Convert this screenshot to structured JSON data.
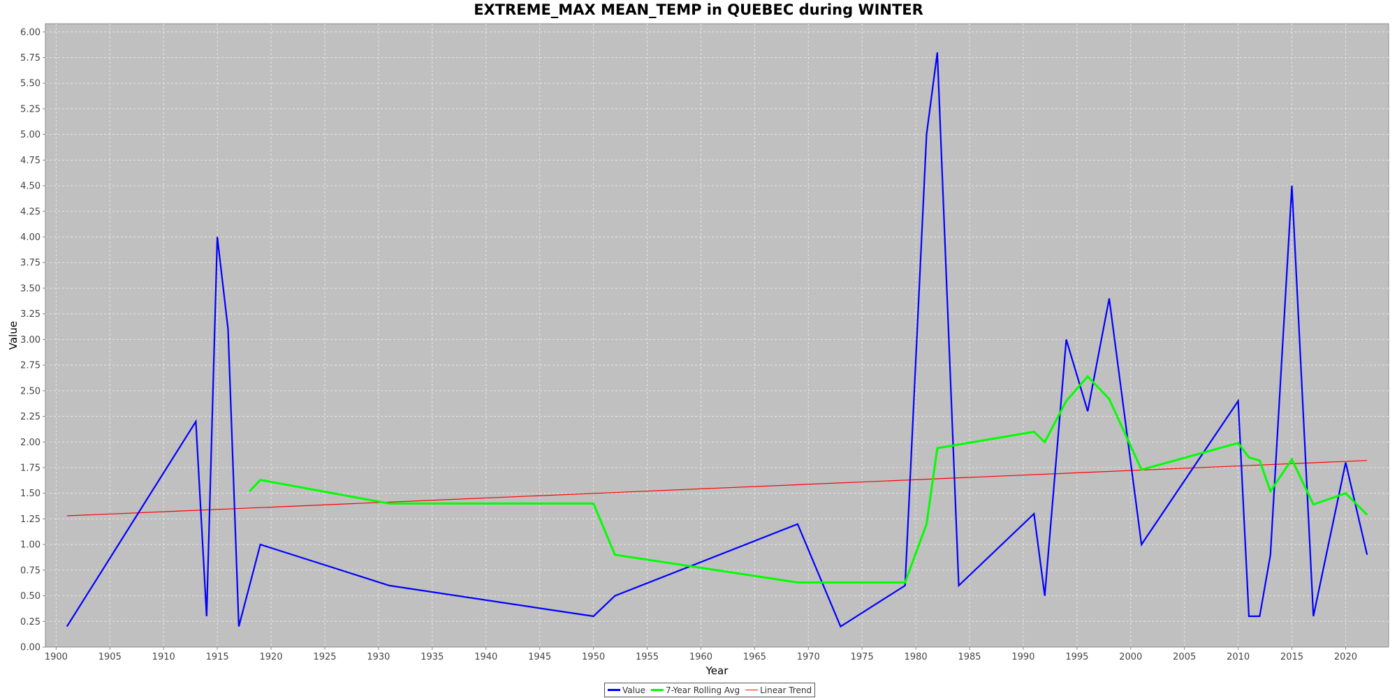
{
  "chart_data": {
    "type": "line",
    "title": "EXTREME_MAX MEAN_TEMP in QUEBEC during WINTER",
    "xlabel": "Year",
    "ylabel": "Value",
    "xlim": [
      1899,
      2024
    ],
    "ylim": [
      0,
      6.08
    ],
    "xticks": [
      1900,
      1905,
      1910,
      1915,
      1920,
      1925,
      1930,
      1935,
      1940,
      1945,
      1950,
      1955,
      1960,
      1965,
      1970,
      1975,
      1980,
      1985,
      1990,
      1995,
      2000,
      2005,
      2010,
      2015,
      2020
    ],
    "yticks": [
      "0.00",
      "0.25",
      "0.50",
      "0.75",
      "1.00",
      "1.25",
      "1.50",
      "1.75",
      "2.00",
      "2.25",
      "2.50",
      "2.75",
      "3.00",
      "3.25",
      "3.50",
      "3.75",
      "4.00",
      "4.25",
      "4.50",
      "4.75",
      "5.00",
      "5.25",
      "5.50",
      "5.75",
      "6.00"
    ],
    "grid": true,
    "legend_position": "bottom",
    "series": [
      {
        "name": "Value",
        "color": "#0000ff",
        "x": [
          1901,
          1913,
          1914,
          1915,
          1916,
          1917,
          1919,
          1931,
          1950,
          1952,
          1969,
          1973,
          1979,
          1981,
          1982,
          1984,
          1991,
          1992,
          1994,
          1996,
          1998,
          2001,
          2010,
          2011,
          2012,
          2013,
          2015,
          2017,
          2020,
          2022
        ],
        "y": [
          0.2,
          2.2,
          0.3,
          4.0,
          3.1,
          0.2,
          1.0,
          0.6,
          0.3,
          0.5,
          1.2,
          0.2,
          0.6,
          5.0,
          5.8,
          0.6,
          1.3,
          0.5,
          3.0,
          2.3,
          3.4,
          1.0,
          2.4,
          0.3,
          0.3,
          0.9,
          4.5,
          0.3,
          1.8,
          0.9
        ]
      },
      {
        "name": "7-Year Rolling Avg",
        "color": "#00ff00",
        "x": [
          1918,
          1919,
          1931,
          1950,
          1952,
          1969,
          1979,
          1981,
          1982,
          1991,
          1992,
          1994,
          1996,
          1998,
          2001,
          2010,
          2011,
          2012,
          2013,
          2015,
          2017,
          2020,
          2022
        ],
        "y": [
          1.52,
          1.63,
          1.4,
          1.4,
          0.9,
          0.63,
          0.63,
          1.2,
          1.94,
          2.1,
          2.0,
          2.4,
          2.64,
          2.42,
          1.73,
          1.99,
          1.85,
          1.82,
          1.52,
          1.83,
          1.39,
          1.5,
          1.29
        ]
      },
      {
        "name": "Linear Trend",
        "color": "#ff0000",
        "x": [
          1901,
          2022
        ],
        "y": [
          1.28,
          1.82
        ]
      }
    ]
  }
}
